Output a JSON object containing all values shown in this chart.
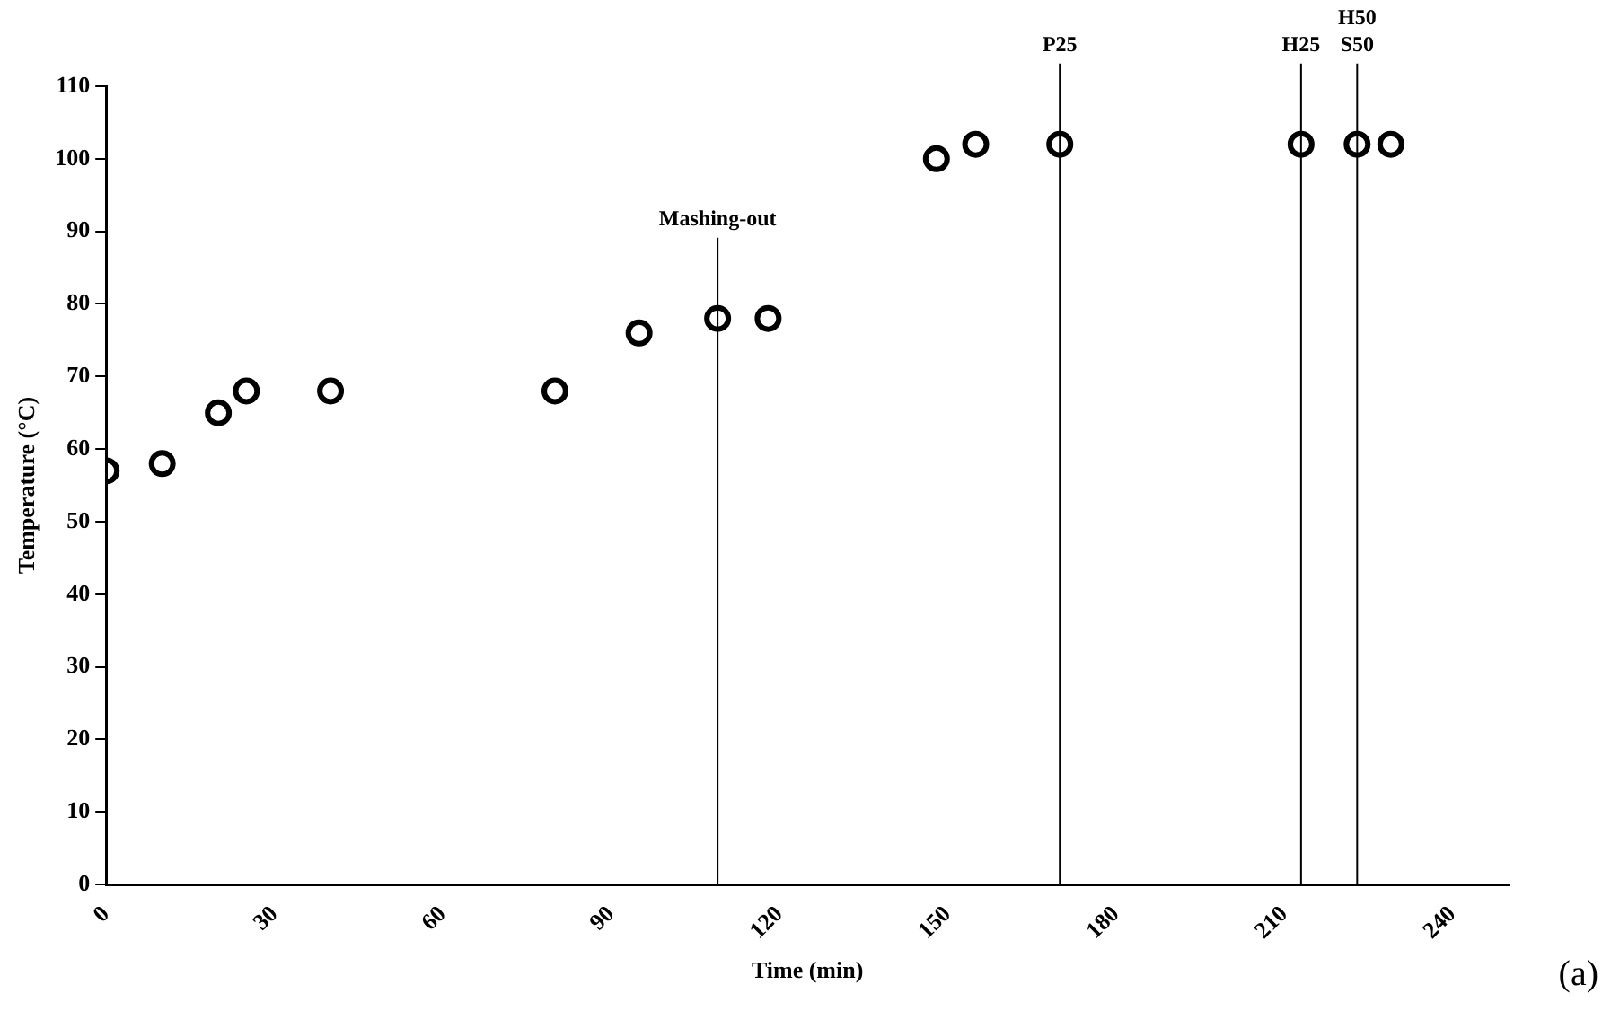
{
  "chart_data": {
    "type": "scatter",
    "xlabel": "Time (min)",
    "ylabel": "Temperature (°C)",
    "x": [
      0,
      10,
      20,
      25,
      40,
      80,
      95,
      109,
      118,
      148,
      155,
      170,
      213,
      223,
      229
    ],
    "values": [
      57,
      58,
      65,
      68,
      68,
      68,
      76,
      78,
      78,
      100,
      102,
      102,
      102,
      102,
      102
    ],
    "color": "#000000",
    "marker": "circle",
    "grid": false,
    "legend": false,
    "xlim": [
      0,
      250
    ],
    "xticks": [
      0,
      30,
      60,
      90,
      120,
      150,
      180,
      210,
      240
    ],
    "ylim": [
      0,
      110
    ],
    "yticks": [
      0,
      10,
      20,
      30,
      40,
      50,
      60,
      70,
      80,
      90,
      100,
      110
    ],
    "ref_lines": [
      {
        "axis": "x",
        "value": 109,
        "label": "Mashing-out",
        "color": "#000000"
      },
      {
        "axis": "x",
        "value": 170,
        "label": "P25",
        "color": "#000000"
      },
      {
        "axis": "x",
        "value": 213,
        "label": "H25",
        "color": "#000000"
      },
      {
        "axis": "x",
        "value": 223,
        "label": "H50\nS50",
        "color": "#000000"
      }
    ],
    "annotations": [
      "(a)"
    ]
  }
}
